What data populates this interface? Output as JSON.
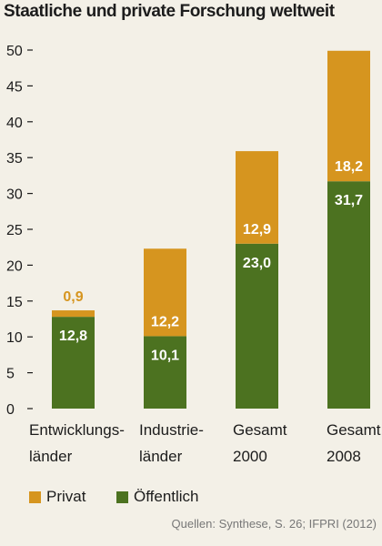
{
  "title": "Staatliche und private Forschung weltweit",
  "source": "Quellen: Synthese, S. 26; IFPRI (2012)",
  "legend": {
    "privat": "Privat",
    "oeffentlich": "Öffentlich"
  },
  "colors": {
    "privat": "#d6951f",
    "oeffentlich": "#4c7220",
    "background": "#f3f0e7"
  },
  "category_labels": [
    {
      "line1": "Entwicklungs-",
      "line2": "länder"
    },
    {
      "line1": "Industrie-",
      "line2": "länder"
    },
    {
      "line1": "Gesamt",
      "line2": "2000"
    },
    {
      "line1": "Gesamt",
      "line2": "2008"
    }
  ],
  "chart_data": {
    "type": "bar",
    "stacked": true,
    "title": "Staatliche und private Forschung weltweit",
    "categories": [
      "Entwicklungsländer",
      "Industrieländer",
      "Gesamt 2000",
      "Gesamt 2008"
    ],
    "series": [
      {
        "name": "Öffentlich",
        "values": [
          12.8,
          10.1,
          23.0,
          31.7
        ],
        "labels": [
          "12,8",
          "10,1",
          "23,0",
          "31,7"
        ],
        "color": "#4c7220"
      },
      {
        "name": "Privat",
        "values": [
          0.9,
          12.2,
          12.9,
          18.2
        ],
        "labels": [
          "0,9",
          "12,2",
          "12,9",
          "18,2"
        ],
        "color": "#d6951f"
      }
    ],
    "ylim": [
      0,
      50
    ],
    "yticks": [
      0,
      5,
      10,
      15,
      20,
      25,
      30,
      35,
      40,
      45,
      50
    ],
    "ytick_labels": [
      "0",
      "5",
      "10",
      "15",
      "20",
      "25",
      "30",
      "35",
      "40",
      "45",
      "50"
    ],
    "grid": false,
    "legend_position": "bottom-left"
  }
}
